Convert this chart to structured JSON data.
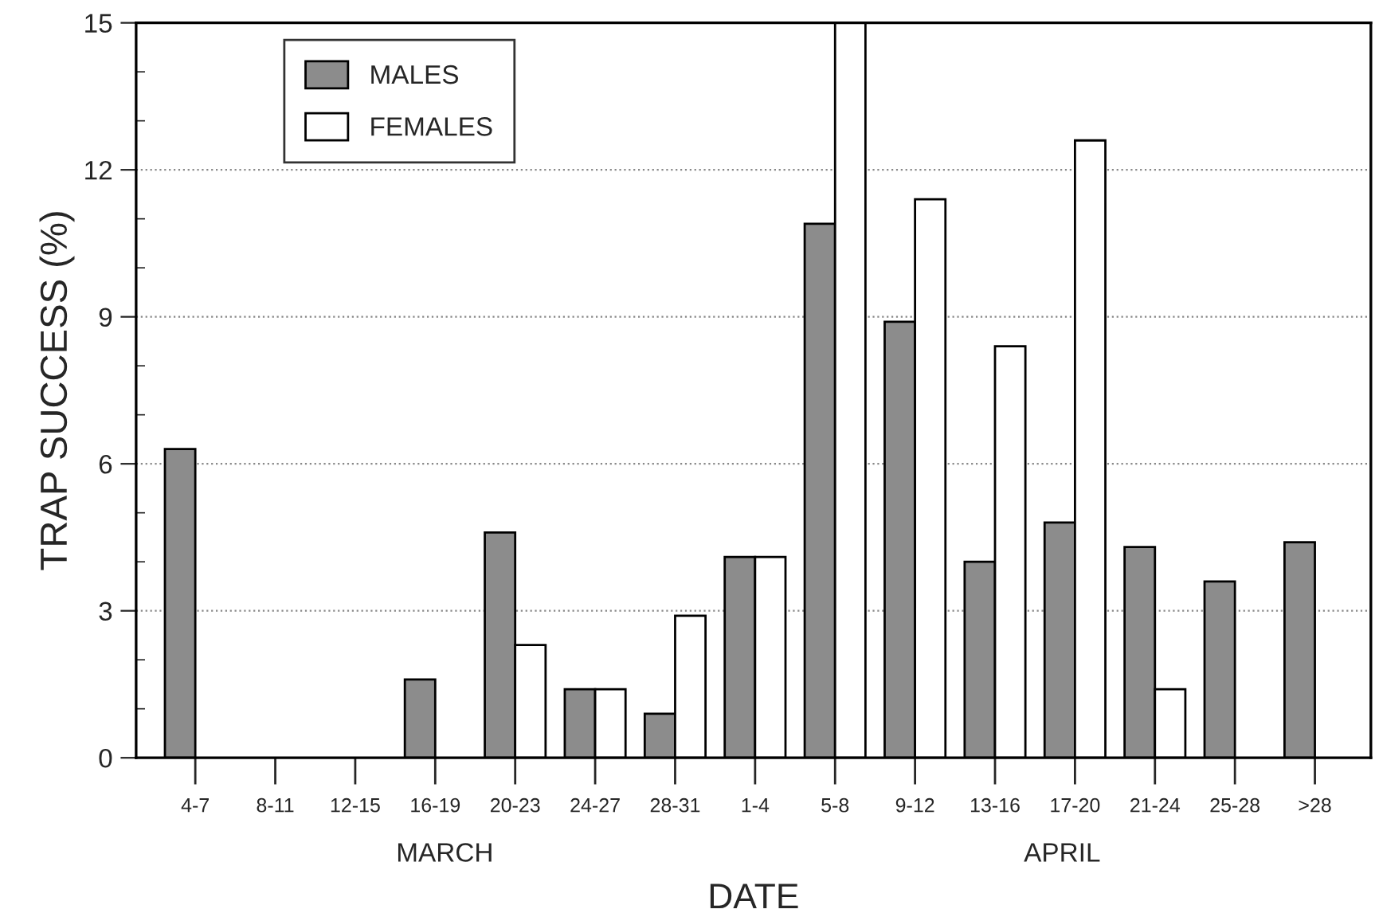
{
  "chart_data": {
    "type": "bar",
    "xlabel": "DATE",
    "ylabel": "TRAP SUCCESS (%)",
    "categories": [
      "4-7",
      "8-11",
      "12-15",
      "16-19",
      "20-23",
      "24-27",
      "28-31",
      "1-4",
      "5-8",
      "9-12",
      "13-16",
      "17-20",
      "21-24",
      "25-28",
      ">28"
    ],
    "series": [
      {
        "name": "MALES",
        "color": "#8c8c8c",
        "values": [
          6.3,
          null,
          null,
          1.6,
          4.6,
          1.4,
          0.9,
          4.1,
          10.9,
          8.9,
          4.0,
          4.8,
          4.3,
          3.6,
          4.4
        ]
      },
      {
        "name": "FEMALES",
        "color": "#ffffff",
        "values": [
          null,
          null,
          null,
          null,
          2.3,
          1.4,
          2.9,
          4.1,
          15.0,
          11.4,
          8.4,
          12.6,
          1.4,
          null,
          null
        ]
      }
    ],
    "ylim": [
      0,
      15
    ],
    "yticks": [
      0,
      3,
      6,
      9,
      12,
      15
    ],
    "grid": "y",
    "legend": "top left",
    "annotations": [
      "MARCH",
      "APRIL"
    ]
  }
}
